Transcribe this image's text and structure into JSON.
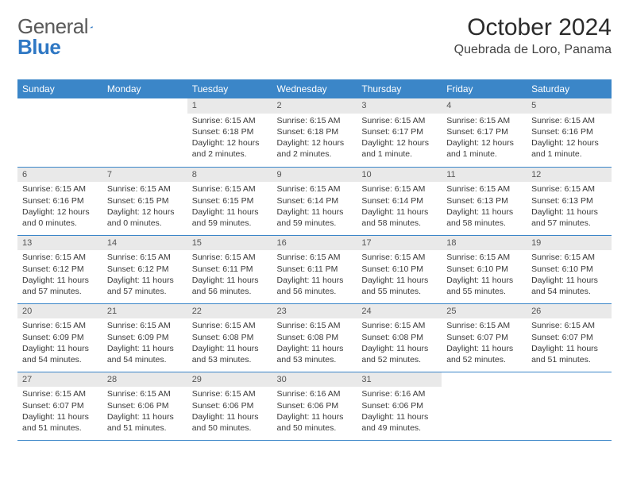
{
  "brand": {
    "text1": "General",
    "text2": "Blue",
    "blue": "#2f78c4"
  },
  "title": "October 2024",
  "location": "Quebrada de Loro, Panama",
  "colors": {
    "header_bg": "#3b86c8",
    "header_fg": "#ffffff",
    "daynum_bg": "#e9e9e9",
    "row_divider": "#3b86c8",
    "body_text": "#3a3a3a"
  },
  "weekdays": [
    "Sunday",
    "Monday",
    "Tuesday",
    "Wednesday",
    "Thursday",
    "Friday",
    "Saturday"
  ],
  "rows": [
    [
      {
        "n": "",
        "empty": true
      },
      {
        "n": "",
        "empty": true
      },
      {
        "n": "1",
        "sunrise": "Sunrise: 6:15 AM",
        "sunset": "Sunset: 6:18 PM",
        "daylight": "Daylight: 12 hours and 2 minutes."
      },
      {
        "n": "2",
        "sunrise": "Sunrise: 6:15 AM",
        "sunset": "Sunset: 6:18 PM",
        "daylight": "Daylight: 12 hours and 2 minutes."
      },
      {
        "n": "3",
        "sunrise": "Sunrise: 6:15 AM",
        "sunset": "Sunset: 6:17 PM",
        "daylight": "Daylight: 12 hours and 1 minute."
      },
      {
        "n": "4",
        "sunrise": "Sunrise: 6:15 AM",
        "sunset": "Sunset: 6:17 PM",
        "daylight": "Daylight: 12 hours and 1 minute."
      },
      {
        "n": "5",
        "sunrise": "Sunrise: 6:15 AM",
        "sunset": "Sunset: 6:16 PM",
        "daylight": "Daylight: 12 hours and 1 minute."
      }
    ],
    [
      {
        "n": "6",
        "sunrise": "Sunrise: 6:15 AM",
        "sunset": "Sunset: 6:16 PM",
        "daylight": "Daylight: 12 hours and 0 minutes."
      },
      {
        "n": "7",
        "sunrise": "Sunrise: 6:15 AM",
        "sunset": "Sunset: 6:15 PM",
        "daylight": "Daylight: 12 hours and 0 minutes."
      },
      {
        "n": "8",
        "sunrise": "Sunrise: 6:15 AM",
        "sunset": "Sunset: 6:15 PM",
        "daylight": "Daylight: 11 hours and 59 minutes."
      },
      {
        "n": "9",
        "sunrise": "Sunrise: 6:15 AM",
        "sunset": "Sunset: 6:14 PM",
        "daylight": "Daylight: 11 hours and 59 minutes."
      },
      {
        "n": "10",
        "sunrise": "Sunrise: 6:15 AM",
        "sunset": "Sunset: 6:14 PM",
        "daylight": "Daylight: 11 hours and 58 minutes."
      },
      {
        "n": "11",
        "sunrise": "Sunrise: 6:15 AM",
        "sunset": "Sunset: 6:13 PM",
        "daylight": "Daylight: 11 hours and 58 minutes."
      },
      {
        "n": "12",
        "sunrise": "Sunrise: 6:15 AM",
        "sunset": "Sunset: 6:13 PM",
        "daylight": "Daylight: 11 hours and 57 minutes."
      }
    ],
    [
      {
        "n": "13",
        "sunrise": "Sunrise: 6:15 AM",
        "sunset": "Sunset: 6:12 PM",
        "daylight": "Daylight: 11 hours and 57 minutes."
      },
      {
        "n": "14",
        "sunrise": "Sunrise: 6:15 AM",
        "sunset": "Sunset: 6:12 PM",
        "daylight": "Daylight: 11 hours and 57 minutes."
      },
      {
        "n": "15",
        "sunrise": "Sunrise: 6:15 AM",
        "sunset": "Sunset: 6:11 PM",
        "daylight": "Daylight: 11 hours and 56 minutes."
      },
      {
        "n": "16",
        "sunrise": "Sunrise: 6:15 AM",
        "sunset": "Sunset: 6:11 PM",
        "daylight": "Daylight: 11 hours and 56 minutes."
      },
      {
        "n": "17",
        "sunrise": "Sunrise: 6:15 AM",
        "sunset": "Sunset: 6:10 PM",
        "daylight": "Daylight: 11 hours and 55 minutes."
      },
      {
        "n": "18",
        "sunrise": "Sunrise: 6:15 AM",
        "sunset": "Sunset: 6:10 PM",
        "daylight": "Daylight: 11 hours and 55 minutes."
      },
      {
        "n": "19",
        "sunrise": "Sunrise: 6:15 AM",
        "sunset": "Sunset: 6:10 PM",
        "daylight": "Daylight: 11 hours and 54 minutes."
      }
    ],
    [
      {
        "n": "20",
        "sunrise": "Sunrise: 6:15 AM",
        "sunset": "Sunset: 6:09 PM",
        "daylight": "Daylight: 11 hours and 54 minutes."
      },
      {
        "n": "21",
        "sunrise": "Sunrise: 6:15 AM",
        "sunset": "Sunset: 6:09 PM",
        "daylight": "Daylight: 11 hours and 54 minutes."
      },
      {
        "n": "22",
        "sunrise": "Sunrise: 6:15 AM",
        "sunset": "Sunset: 6:08 PM",
        "daylight": "Daylight: 11 hours and 53 minutes."
      },
      {
        "n": "23",
        "sunrise": "Sunrise: 6:15 AM",
        "sunset": "Sunset: 6:08 PM",
        "daylight": "Daylight: 11 hours and 53 minutes."
      },
      {
        "n": "24",
        "sunrise": "Sunrise: 6:15 AM",
        "sunset": "Sunset: 6:08 PM",
        "daylight": "Daylight: 11 hours and 52 minutes."
      },
      {
        "n": "25",
        "sunrise": "Sunrise: 6:15 AM",
        "sunset": "Sunset: 6:07 PM",
        "daylight": "Daylight: 11 hours and 52 minutes."
      },
      {
        "n": "26",
        "sunrise": "Sunrise: 6:15 AM",
        "sunset": "Sunset: 6:07 PM",
        "daylight": "Daylight: 11 hours and 51 minutes."
      }
    ],
    [
      {
        "n": "27",
        "sunrise": "Sunrise: 6:15 AM",
        "sunset": "Sunset: 6:07 PM",
        "daylight": "Daylight: 11 hours and 51 minutes."
      },
      {
        "n": "28",
        "sunrise": "Sunrise: 6:15 AM",
        "sunset": "Sunset: 6:06 PM",
        "daylight": "Daylight: 11 hours and 51 minutes."
      },
      {
        "n": "29",
        "sunrise": "Sunrise: 6:15 AM",
        "sunset": "Sunset: 6:06 PM",
        "daylight": "Daylight: 11 hours and 50 minutes."
      },
      {
        "n": "30",
        "sunrise": "Sunrise: 6:16 AM",
        "sunset": "Sunset: 6:06 PM",
        "daylight": "Daylight: 11 hours and 50 minutes."
      },
      {
        "n": "31",
        "sunrise": "Sunrise: 6:16 AM",
        "sunset": "Sunset: 6:06 PM",
        "daylight": "Daylight: 11 hours and 49 minutes."
      },
      {
        "n": "",
        "empty": true
      },
      {
        "n": "",
        "empty": true
      }
    ]
  ]
}
